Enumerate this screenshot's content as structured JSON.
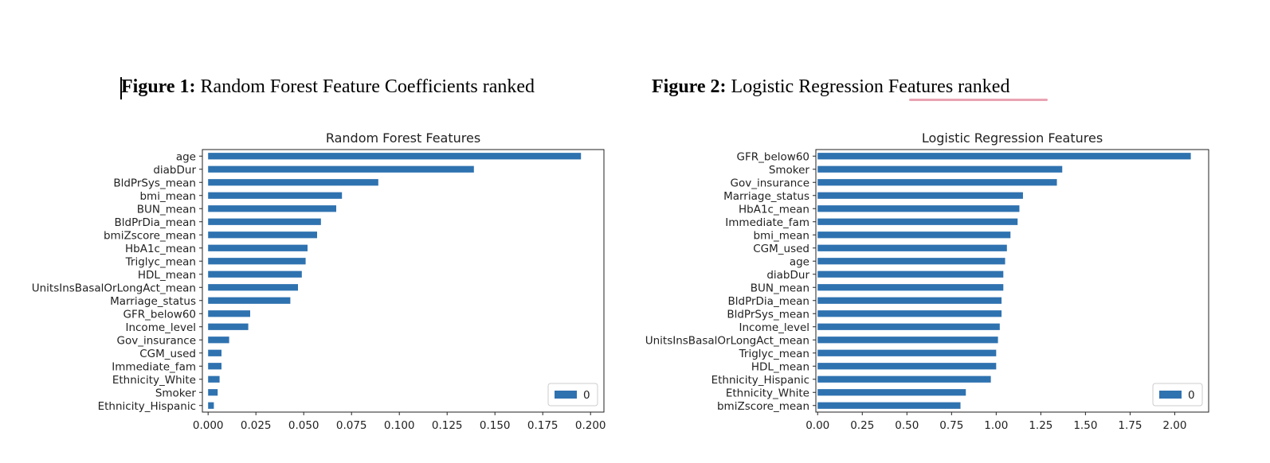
{
  "captions": {
    "fig1_bold": "Figure 1:",
    "fig1_text": " Random Forest Feature Coefficients ranked",
    "fig2_bold": "Figure 2:",
    "fig2_text": " Logistic Regression Features  ranked"
  },
  "colors": {
    "bar": "#2f72b0",
    "underline": "#e9a3b3"
  },
  "chart_data": [
    {
      "type": "bar",
      "orientation": "horizontal",
      "title": "Random Forest Features",
      "categories": [
        "age",
        "diabDur",
        "BldPrSys_mean",
        "bmi_mean",
        "BUN_mean",
        "BldPrDia_mean",
        "bmiZscore_mean",
        "HbA1c_mean",
        "Triglyc_mean",
        "HDL_mean",
        "UnitsInsBasalOrLongAct_mean",
        "Marriage_status",
        "GFR_below60",
        "Income_level",
        "Gov_insurance",
        "CGM_used",
        "Immediate_fam",
        "Ethnicity_White",
        "Smoker",
        "Ethnicity_Hispanic"
      ],
      "values": [
        0.195,
        0.139,
        0.089,
        0.07,
        0.067,
        0.059,
        0.057,
        0.052,
        0.051,
        0.049,
        0.047,
        0.043,
        0.022,
        0.021,
        0.011,
        0.007,
        0.007,
        0.006,
        0.005,
        0.003
      ],
      "xlim": [
        -0.003,
        0.207
      ],
      "xticks": [
        0.0,
        0.025,
        0.05,
        0.075,
        0.1,
        0.125,
        0.15,
        0.175,
        0.2
      ],
      "xtick_labels": [
        "0.000",
        "0.025",
        "0.050",
        "0.075",
        "0.100",
        "0.125",
        "0.150",
        "0.175",
        "0.200"
      ],
      "legend": {
        "label": "0",
        "position": "lower-right"
      }
    },
    {
      "type": "bar",
      "orientation": "horizontal",
      "title": "Logistic Regression Features",
      "categories": [
        "GFR_below60",
        "Smoker",
        "Gov_insurance",
        "Marriage_status",
        "HbA1c_mean",
        "Immediate_fam",
        "bmi_mean",
        "CGM_used",
        "age",
        "diabDur",
        "BUN_mean",
        "BldPrDia_mean",
        "BldPrSys_mean",
        "Income_level",
        "UnitsInsBasalOrLongAct_mean",
        "Triglyc_mean",
        "HDL_mean",
        "Ethnicity_Hispanic",
        "Ethnicity_White",
        "bmiZscore_mean"
      ],
      "values": [
        2.09,
        1.37,
        1.34,
        1.15,
        1.13,
        1.12,
        1.08,
        1.06,
        1.05,
        1.04,
        1.04,
        1.03,
        1.03,
        1.02,
        1.01,
        1.0,
        1.0,
        0.97,
        0.83,
        0.8
      ],
      "xlim": [
        -0.01,
        2.19
      ],
      "xticks": [
        0.0,
        0.25,
        0.5,
        0.75,
        1.0,
        1.25,
        1.5,
        1.75,
        2.0
      ],
      "xtick_labels": [
        "0.00",
        "0.25",
        "0.50",
        "0.75",
        "1.00",
        "1.25",
        "1.50",
        "1.75",
        "2.00"
      ],
      "legend": {
        "label": "0",
        "position": "lower-right"
      }
    }
  ]
}
